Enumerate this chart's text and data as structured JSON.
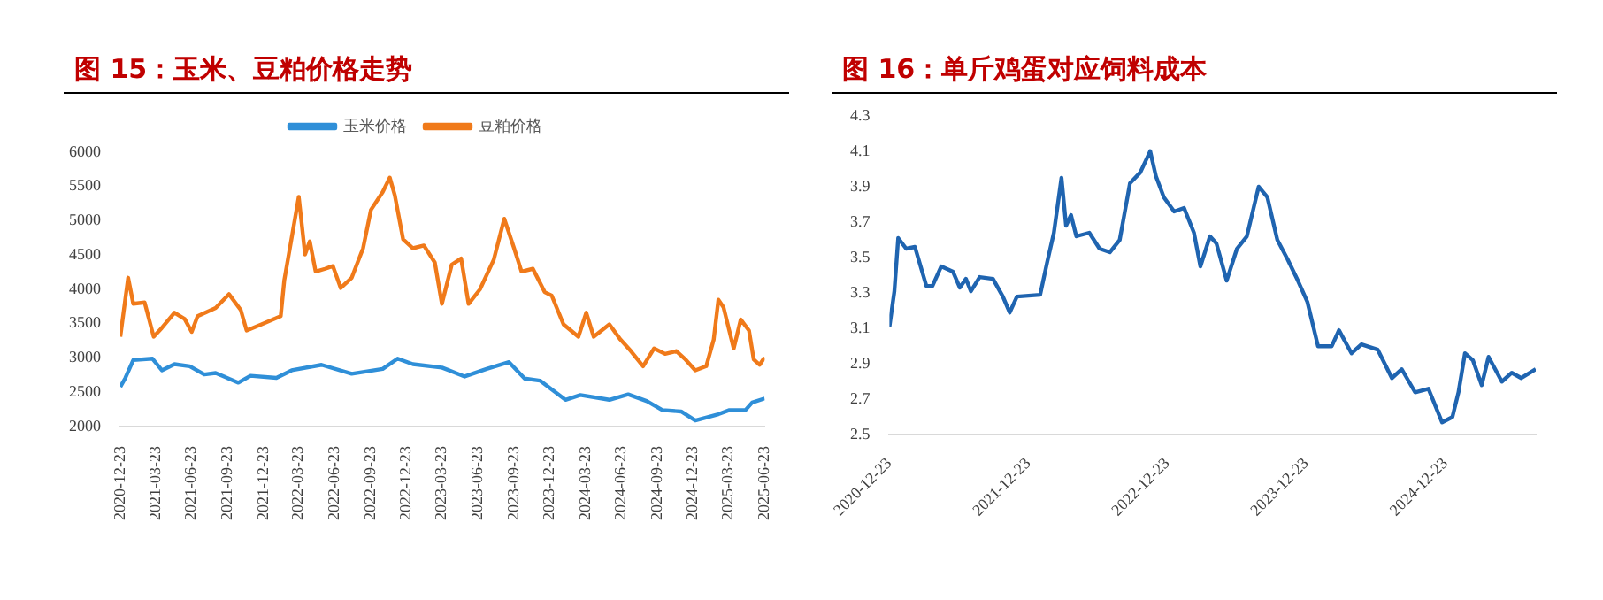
{
  "chart_data": [
    {
      "type": "line",
      "title": "图 15：玉米、豆粕价格走势",
      "legend": "top",
      "grid": false,
      "marker": "none",
      "line_style": "solid",
      "xlim": [
        "2020-12-23",
        "2025-06-23"
      ],
      "xticks": [
        "2020-12-23",
        "2021-03-23",
        "2021-06-23",
        "2021-09-23",
        "2021-12-23",
        "2022-03-23",
        "2022-06-23",
        "2022-09-23",
        "2022-12-23",
        "2023-03-23",
        "2023-06-23",
        "2023-09-23",
        "2023-12-23",
        "2024-03-23",
        "2024-06-23",
        "2024-09-23",
        "2024-12-23",
        "2025-03-23",
        "2025-06-23"
      ],
      "ylim": [
        2000,
        6000
      ],
      "yticks": [
        2000,
        2500,
        3000,
        3500,
        4000,
        4500,
        5000,
        5500,
        6000
      ],
      "series": [
        {
          "name": "玉米价格",
          "color": "#2f8fd8",
          "x": [
            "2020-12-23",
            "2021-01-05",
            "2021-01-25",
            "2021-03-15",
            "2021-04-08",
            "2021-05-10",
            "2021-06-18",
            "2021-07-25",
            "2021-08-23",
            "2021-10-20",
            "2021-11-20",
            "2022-01-25",
            "2022-03-05",
            "2022-05-20",
            "2022-08-05",
            "2022-10-23",
            "2022-11-30",
            "2023-01-08",
            "2023-03-23",
            "2023-05-20",
            "2023-07-15",
            "2023-09-10",
            "2023-10-20",
            "2023-11-28",
            "2024-02-01",
            "2024-03-10",
            "2024-05-23",
            "2024-07-10",
            "2024-08-27",
            "2024-10-05",
            "2024-11-22",
            "2024-12-28",
            "2025-02-25",
            "2025-03-25",
            "2025-05-05",
            "2025-05-22",
            "2025-06-23"
          ],
          "values": [
            2580,
            2710,
            2970,
            2990,
            2820,
            2910,
            2880,
            2760,
            2780,
            2640,
            2740,
            2710,
            2820,
            2900,
            2770,
            2840,
            2990,
            2910,
            2860,
            2730,
            2840,
            2940,
            2700,
            2670,
            2390,
            2460,
            2390,
            2470,
            2370,
            2240,
            2220,
            2090,
            2180,
            2240,
            2240,
            2350,
            2410
          ]
        },
        {
          "name": "豆粕价格",
          "color": "#f07a1a",
          "x": [
            "2020-12-23",
            "2021-01-12",
            "2021-01-25",
            "2021-02-23",
            "2021-03-18",
            "2021-04-08",
            "2021-05-10",
            "2021-06-05",
            "2021-06-23",
            "2021-07-08",
            "2021-08-23",
            "2021-09-26",
            "2021-10-26",
            "2021-11-10",
            "2021-12-18",
            "2022-02-05",
            "2022-02-14",
            "2022-03-10",
            "2022-03-23",
            "2022-04-08",
            "2022-04-20",
            "2022-05-05",
            "2022-05-29",
            "2022-06-18",
            "2022-07-08",
            "2022-08-05",
            "2022-09-03",
            "2022-09-23",
            "2022-10-23",
            "2022-11-10",
            "2022-11-23",
            "2022-12-14",
            "2023-01-08",
            "2023-02-05",
            "2023-03-05",
            "2023-03-23",
            "2023-04-17",
            "2023-05-11",
            "2023-05-30",
            "2023-06-28",
            "2023-08-02",
            "2023-08-29",
            "2023-09-23",
            "2023-10-12",
            "2023-11-10",
            "2023-12-10",
            "2023-12-28",
            "2024-01-27",
            "2024-03-05",
            "2024-03-25",
            "2024-04-13",
            "2024-05-23",
            "2024-06-20",
            "2024-07-17",
            "2024-08-17",
            "2024-09-14",
            "2024-10-12",
            "2024-11-10",
            "2024-12-01",
            "2024-12-28",
            "2025-01-25",
            "2025-02-13",
            "2025-02-25",
            "2025-03-10",
            "2025-04-05",
            "2025-04-23",
            "2025-05-14",
            "2025-05-26",
            "2025-06-10",
            "2025-06-23"
          ],
          "values": [
            3310,
            4170,
            3790,
            3810,
            3310,
            3440,
            3660,
            3570,
            3380,
            3610,
            3730,
            3930,
            3700,
            3400,
            3490,
            3610,
            4130,
            4920,
            5350,
            4510,
            4700,
            4260,
            4300,
            4340,
            4020,
            4170,
            4600,
            5160,
            5420,
            5630,
            5370,
            4730,
            4600,
            4640,
            4390,
            3790,
            4360,
            4450,
            3790,
            4000,
            4430,
            5030,
            4600,
            4260,
            4300,
            3960,
            3910,
            3490,
            3310,
            3660,
            3310,
            3490,
            3270,
            3100,
            2880,
            3140,
            3060,
            3100,
            2990,
            2820,
            2880,
            3270,
            3850,
            3740,
            3140,
            3560,
            3400,
            2980,
            2900,
            3010
          ]
        }
      ]
    },
    {
      "type": "line",
      "title": "图 16：单斤鸡蛋对应饲料成本",
      "grid": false,
      "marker": "none",
      "line_style": "solid",
      "xlim": [
        "2020-12-23",
        "2025-08-17"
      ],
      "xticks": [
        "2020-12-23",
        "2021-12-23",
        "2022-12-23",
        "2023-12-23",
        "2024-12-23"
      ],
      "ylim": [
        2.5,
        4.3
      ],
      "yticks": [
        2.5,
        2.7,
        2.9,
        3.1,
        3.3,
        3.5,
        3.7,
        3.9,
        4.1,
        4.3
      ],
      "series": [
        {
          "color": "#1f64b0",
          "x": [
            "2020-12-23",
            "2021-01-05",
            "2021-01-15",
            "2021-02-05",
            "2021-02-28",
            "2021-03-30",
            "2021-04-15",
            "2021-05-08",
            "2021-06-08",
            "2021-06-26",
            "2021-07-12",
            "2021-07-25",
            "2021-08-17",
            "2021-09-21",
            "2021-10-17",
            "2021-11-04",
            "2021-11-23",
            "2022-01-23",
            "2022-02-10",
            "2022-02-28",
            "2022-03-20",
            "2022-04-01",
            "2022-04-14",
            "2022-04-28",
            "2022-06-01",
            "2022-06-28",
            "2022-07-25",
            "2022-08-20",
            "2022-09-16",
            "2022-10-13",
            "2022-11-08",
            "2022-11-23",
            "2022-12-14",
            "2023-01-10",
            "2023-02-05",
            "2023-03-03",
            "2023-03-20",
            "2023-04-14",
            "2023-05-01",
            "2023-05-28",
            "2023-06-24",
            "2023-07-20",
            "2023-08-20",
            "2023-09-12",
            "2023-10-08",
            "2023-11-04",
            "2023-12-01",
            "2023-12-26",
            "2024-01-23",
            "2024-02-28",
            "2024-03-18",
            "2024-04-20",
            "2024-05-16",
            "2024-06-28",
            "2024-08-04",
            "2024-08-30",
            "2024-10-04",
            "2024-11-08",
            "2024-12-14",
            "2025-01-10",
            "2025-01-26",
            "2025-02-12",
            "2025-03-05",
            "2025-03-28",
            "2025-04-15",
            "2025-05-20",
            "2025-06-15",
            "2025-07-10",
            "2025-08-17"
          ],
          "values": [
            3.11,
            3.31,
            3.61,
            3.55,
            3.56,
            3.34,
            3.34,
            3.45,
            3.42,
            3.33,
            3.38,
            3.31,
            3.39,
            3.38,
            3.28,
            3.19,
            3.28,
            3.29,
            3.47,
            3.64,
            3.95,
            3.68,
            3.74,
            3.62,
            3.64,
            3.55,
            3.53,
            3.6,
            3.92,
            3.98,
            4.1,
            3.96,
            3.84,
            3.76,
            3.78,
            3.64,
            3.45,
            3.62,
            3.58,
            3.37,
            3.55,
            3.62,
            3.9,
            3.84,
            3.6,
            3.49,
            3.37,
            3.25,
            3.0,
            3.0,
            3.09,
            2.96,
            3.01,
            2.98,
            2.82,
            2.87,
            2.74,
            2.76,
            2.57,
            2.6,
            2.74,
            2.96,
            2.92,
            2.78,
            2.94,
            2.8,
            2.85,
            2.82,
            2.87
          ]
        }
      ]
    }
  ]
}
